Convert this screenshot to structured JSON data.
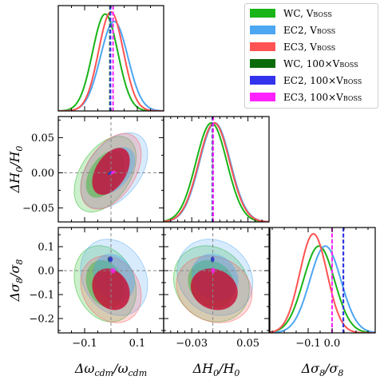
{
  "chart_data": {
    "type": "corner",
    "parameters": [
      {
        "key": "omega",
        "label": "Δω_cdm/ω_cdm",
        "range": [
          -0.2,
          0.2
        ],
        "ticks": [
          -0.1,
          0.1
        ]
      },
      {
        "key": "h0",
        "label": "ΔH_0/H_0",
        "range": [
          -0.07,
          0.08
        ],
        "ticks": [
          -0.03,
          0.05
        ],
        "yticks": [
          -0.05,
          0.0,
          0.05
        ]
      },
      {
        "key": "sigma8",
        "label": "Δσ_8/σ_8",
        "range": [
          -0.26,
          0.18
        ],
        "ticks": [
          -0.1,
          0.0
        ],
        "yticks": [
          -0.2,
          -0.1,
          0.0,
          0.1
        ]
      }
    ],
    "tick_labels": {
      "omega_x": [
        "−0.1",
        "0.1"
      ],
      "h0_x": [
        "−0.03",
        "0.05"
      ],
      "sigma8_x": [
        "−0.1",
        "0.0"
      ],
      "h0_y": [
        "−0.05",
        "0.00",
        "0.05"
      ],
      "sigma8_y": [
        "−0.2",
        "−0.1",
        "0.0",
        "0.1"
      ]
    },
    "axis_labels": {
      "omega": {
        "base": "Δω",
        "sub": "cdm",
        "mid": "/ω",
        "sub2": "cdm"
      },
      "h0": {
        "base": "ΔH",
        "sub": "0",
        "mid": "/H",
        "sub2": "0"
      },
      "sigma8": {
        "base": "Δσ",
        "sub": "8",
        "mid": "/σ",
        "sub2": "8"
      }
    },
    "reference": {
      "omega": 0.0,
      "h0": 0.0,
      "sigma8": 0.0
    },
    "series": [
      {
        "name": "WC, V",
        "sub": "BOSS",
        "color": "#18b418",
        "style": "broad",
        "mean": {
          "omega": -0.022,
          "h0": -0.002,
          "sigma8": -0.055
        },
        "sd": {
          "omega": 0.048,
          "h0": 0.022,
          "sigma8": 0.065
        },
        "rho": {
          "omega_h0": 0.45,
          "omega_sigma8": -0.2,
          "h0_sigma8": -0.15
        }
      },
      {
        "name": "EC2, V",
        "sub": "BOSS",
        "color": "#4ca6f2",
        "style": "broad",
        "mean": {
          "omega": 0.012,
          "h0": 0.003,
          "sigma8": -0.028
        },
        "sd": {
          "omega": 0.052,
          "h0": 0.022,
          "sigma8": 0.065
        },
        "rho": {
          "omega_h0": 0.45,
          "omega_sigma8": -0.2,
          "h0_sigma8": -0.15
        }
      },
      {
        "name": "EC3, V",
        "sub": "BOSS",
        "color": "#ff5252",
        "style": "broad",
        "mean": {
          "omega": 0.0,
          "h0": 0.002,
          "sigma8": -0.078
        },
        "sd": {
          "omega": 0.047,
          "h0": 0.022,
          "sigma8": 0.057
        },
        "rho": {
          "omega_h0": 0.45,
          "omega_sigma8": -0.2,
          "h0_sigma8": -0.15
        }
      },
      {
        "name": "WC, 100×V",
        "sub": "BOSS",
        "color": "#0b6b0b",
        "style": "narrow",
        "mean": {
          "omega": -0.004,
          "h0": -0.0005,
          "sigma8": 0.047
        },
        "sd": {
          "omega": 0.003,
          "h0": 0.0008,
          "sigma8": 0.004
        },
        "rho": {
          "omega_h0": 0.7,
          "omega_sigma8": 0.0,
          "h0_sigma8": 0.0
        }
      },
      {
        "name": "EC2, 100×V",
        "sub": "BOSS",
        "color": "#3333ee",
        "style": "narrow",
        "mean": {
          "omega": -0.002,
          "h0": -0.0003,
          "sigma8": 0.047
        },
        "sd": {
          "omega": 0.003,
          "h0": 0.0008,
          "sigma8": 0.004
        },
        "rho": {
          "omega_h0": 0.7,
          "omega_sigma8": 0.0,
          "h0_sigma8": 0.0
        }
      },
      {
        "name": "EC3, 100×V",
        "sub": "BOSS",
        "color": "#ff22ff",
        "style": "narrow",
        "mean": {
          "omega": 0.008,
          "h0": 0.0005,
          "sigma8": 0.0
        },
        "sd": {
          "omega": 0.003,
          "h0": 0.0008,
          "sigma8": 0.004
        },
        "rho": {
          "omega_h0": 0.7,
          "omega_sigma8": 0.0,
          "h0_sigma8": 0.0
        }
      }
    ],
    "legend_position": "top-right",
    "grid": false
  }
}
